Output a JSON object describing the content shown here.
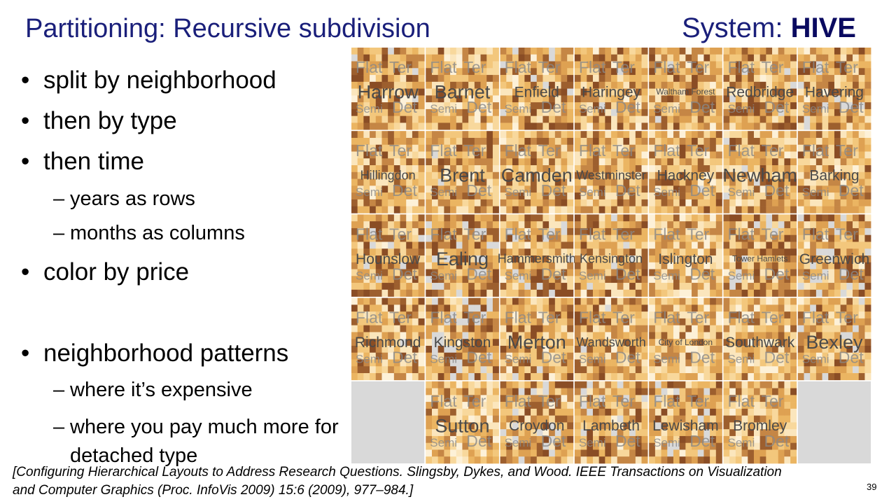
{
  "header": {
    "title": "Partitioning: Recursive subdivision",
    "system_prefix": "System: ",
    "system_name": "HIVE"
  },
  "bullets_top": [
    "split by neighborhood",
    "then by type",
    "then time"
  ],
  "sub_bullets_top": [
    "years as rows",
    "months as columns"
  ],
  "bullet_mid": "color by price",
  "bullet_bottom": "neighborhood patterns",
  "sub_bullets_bottom": [
    "where it’s expensive",
    "where you pay much more for detached type"
  ],
  "quadrant_labels": [
    "Flat",
    "Ter",
    "Semi",
    "Det"
  ],
  "grid": [
    [
      "Harrow",
      "Barnet",
      "Enfield",
      "Haringey",
      "Waltham Forest",
      "Redbridge",
      "Havering"
    ],
    [
      "Hillingdon",
      "Brent",
      "Camden",
      "Westminster",
      "Hackney",
      "Newham",
      "Barking"
    ],
    [
      "Hounslow",
      "Ealing",
      "Hammersmith",
      "Kensington",
      "Islington",
      "Tower Hamlets",
      "Greenwich"
    ],
    [
      "Richmond",
      "Kingston",
      "Merton",
      "Wandsworth",
      "City of London",
      "Southwark",
      "Bexley"
    ],
    [
      null,
      "Sutton",
      "Croydon",
      "Lambeth",
      "Lewisham",
      "Bromley",
      null
    ]
  ],
  "citation": [
    "[Configuring Hierarchical Layouts to Address Research Questions. Slingsby, Dykes, and Wood.  IEEE Transactions on Visualization",
    "and Computer Graphics (Proc. InfoVis 2009) 15:6 (2009), 977–984.]"
  ],
  "page_number": "39"
}
